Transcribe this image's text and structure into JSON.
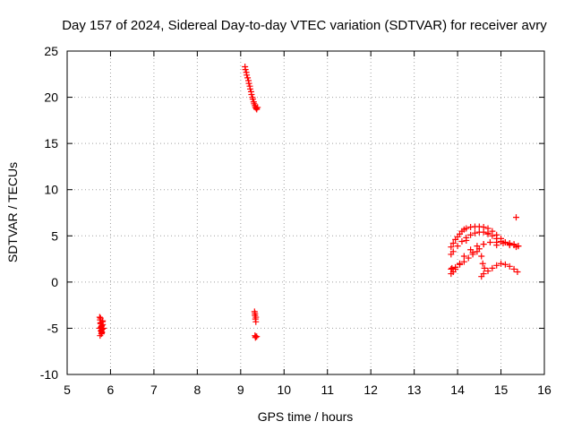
{
  "chart_data": {
    "type": "scatter",
    "title": "Day 157 of 2024, Sidereal Day-to-day VTEC variation (SDTVAR) for receiver avry",
    "xlabel": "GPS time / hours",
    "ylabel": "SDTVAR / TECUs",
    "xlim": [
      5,
      16
    ],
    "ylim": [
      -10,
      25
    ],
    "x_ticks": [
      "5",
      "6",
      "7",
      "8",
      "9",
      "10",
      "11",
      "12",
      "13",
      "14",
      "15",
      "16"
    ],
    "y_ticks": [
      "-10",
      "-5",
      "0",
      "5",
      "10",
      "15",
      "20",
      "25"
    ],
    "grid": true,
    "legend": "none",
    "marker": "+",
    "color": "#ff0000",
    "series": [
      {
        "x": [
          5.75,
          5.76,
          5.77,
          5.78,
          5.79,
          5.8,
          5.81,
          5.82,
          5.84,
          5.76,
          5.78,
          5.8,
          5.82,
          5.75,
          5.77,
          5.79,
          5.81,
          5.77,
          5.79,
          5.8,
          9.1,
          9.13,
          9.16,
          9.19,
          9.22,
          9.25,
          9.28,
          9.31,
          9.34,
          9.37,
          9.39,
          9.11,
          9.14,
          9.18,
          9.21,
          9.24,
          9.27,
          9.3,
          9.33,
          9.36,
          9.32,
          9.33,
          9.34,
          9.35,
          9.33,
          9.34,
          9.35,
          9.33,
          9.35,
          9.37,
          13.85,
          13.9,
          13.95,
          14,
          14.05,
          14.1,
          14.15,
          14.2,
          14.3,
          14.4,
          14.5,
          14.6,
          14.7,
          14.8,
          14.9,
          15,
          15.1,
          15.2,
          15.3,
          15.4,
          13.85,
          13.9,
          14,
          14.1,
          14.2,
          14.3,
          14.4,
          14.5,
          14.6,
          14.7,
          14.8,
          14.9,
          15,
          15.1,
          15.2,
          15.3,
          15.4,
          13.87,
          13.95,
          14.05,
          14.15,
          14.25,
          14.35,
          14.45,
          14.5,
          14.6,
          14.55,
          14.58,
          14.62,
          14.55,
          14.6,
          14.7,
          14.8,
          14.9,
          15,
          15.1,
          15.2,
          15.3,
          15.38,
          13.85,
          13.9,
          13.95,
          14.05,
          14.15,
          14.3,
          14.45,
          14.6,
          14.75,
          14.9,
          15.05,
          15.2,
          15.35,
          15.35,
          13.85,
          14.2,
          14.35,
          14.7,
          14.9
        ],
        "y": [
          -3.8,
          -4.1,
          -4.5,
          -4.9,
          -5.2,
          -5.5,
          -4.3,
          -4.6,
          -5.0,
          -5.8,
          -5.3,
          -4.7,
          -4.2,
          -5.0,
          -4.4,
          -5.6,
          -5.1,
          -3.9,
          -4.8,
          -5.4,
          23.3,
          22.7,
          22.1,
          21.5,
          20.9,
          20.3,
          19.8,
          19.3,
          18.9,
          18.7,
          18.9,
          23.0,
          22.4,
          21.8,
          21.2,
          20.6,
          20.0,
          19.5,
          19.1,
          18.8,
          -3.2,
          -3.6,
          -4.0,
          -4.3,
          -5.8,
          -6.0,
          -5.9,
          -3.4,
          -3.8,
          -5.9,
          3.8,
          4.2,
          4.6,
          4.9,
          5.2,
          5.5,
          5.7,
          5.8,
          5.95,
          6.0,
          6.0,
          5.95,
          5.8,
          5.5,
          5.1,
          4.7,
          4.3,
          4.1,
          4.0,
          3.9,
          3.0,
          3.3,
          3.9,
          4.4,
          4.8,
          5.1,
          5.3,
          5.4,
          5.4,
          5.3,
          5.0,
          4.7,
          4.4,
          4.3,
          4.2,
          4.1,
          3.9,
          1.5,
          1.6,
          1.9,
          2.2,
          2.6,
          3.0,
          3.3,
          3.6,
          4.1,
          2.8,
          2.0,
          1.5,
          0.6,
          0.9,
          1.2,
          1.5,
          1.8,
          2.0,
          1.9,
          1.7,
          1.4,
          1.1,
          0.9,
          1.1,
          1.4,
          2.0,
          2.8,
          3.5,
          3.9,
          4.1,
          4.3,
          4.3,
          4.2,
          4.0,
          3.8,
          7.0,
          1.4,
          4.5,
          3.2,
          5.2,
          4.0
        ]
      }
    ]
  }
}
